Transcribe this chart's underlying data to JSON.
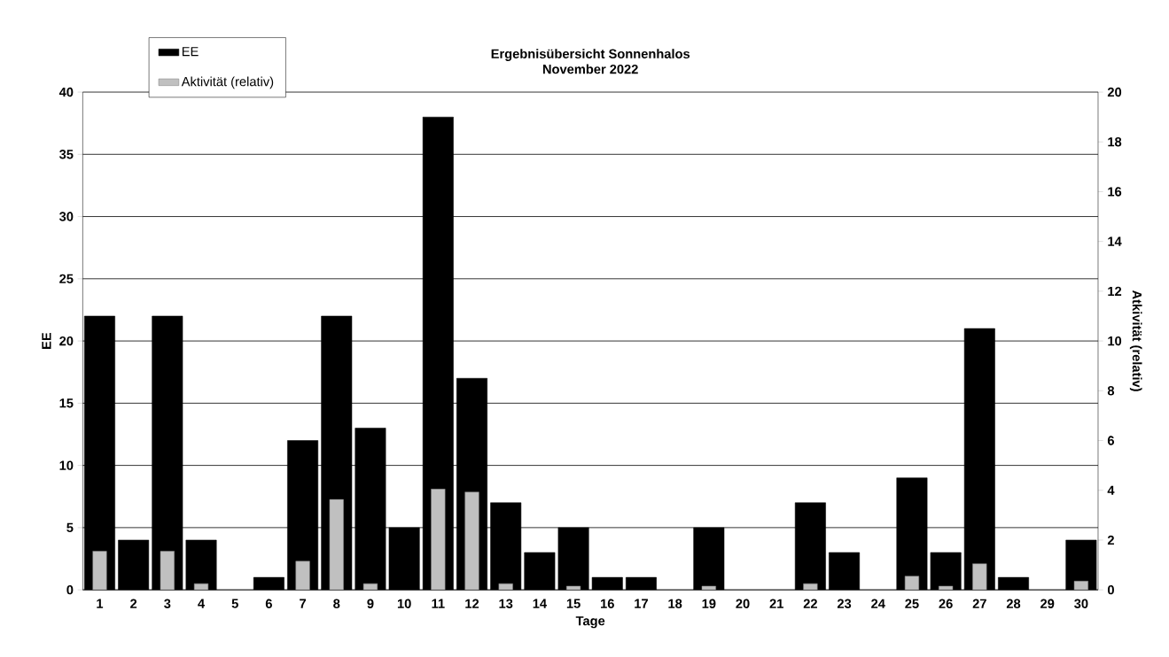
{
  "chart_data": {
    "type": "bar",
    "title": "Ergebnisübersicht Sonnenhalos",
    "subtitle": "November  2022",
    "xlabel": "Tage",
    "ylabel": "EE",
    "y2label": "Atkivität (relativ)",
    "categories": [
      "1",
      "2",
      "3",
      "4",
      "5",
      "6",
      "7",
      "8",
      "9",
      "10",
      "11",
      "12",
      "13",
      "14",
      "15",
      "16",
      "17",
      "18",
      "19",
      "20",
      "21",
      "22",
      "23",
      "24",
      "25",
      "26",
      "27",
      "28",
      "29",
      "30"
    ],
    "series": [
      {
        "name": "EE",
        "color": "#000000",
        "values": [
          22,
          4,
          22,
          4,
          null,
          1,
          12,
          22,
          13,
          5,
          38,
          17,
          7,
          3,
          5,
          1,
          1,
          null,
          5,
          null,
          null,
          7,
          3,
          null,
          9,
          3,
          21,
          1,
          null,
          4
        ]
      },
      {
        "name": "Aktivität (relativ)",
        "color": "#c0c0c0",
        "axis": "y2",
        "values": [
          1.55,
          null,
          1.55,
          0.25,
          null,
          null,
          1.15,
          3.63,
          0.25,
          null,
          4.05,
          3.93,
          0.25,
          null,
          0.15,
          null,
          null,
          null,
          0.15,
          null,
          null,
          0.25,
          null,
          null,
          0.55,
          0.15,
          1.05,
          null,
          null,
          0.35
        ]
      }
    ],
    "ylim": [
      0,
      40
    ],
    "yticks": [
      0,
      5,
      10,
      15,
      20,
      25,
      30,
      35,
      40
    ],
    "y2lim": [
      0,
      20
    ],
    "y2ticks": [
      0,
      2,
      4,
      6,
      8,
      10,
      12,
      14,
      16,
      18,
      20
    ],
    "grid": "y",
    "legend": "top left"
  }
}
